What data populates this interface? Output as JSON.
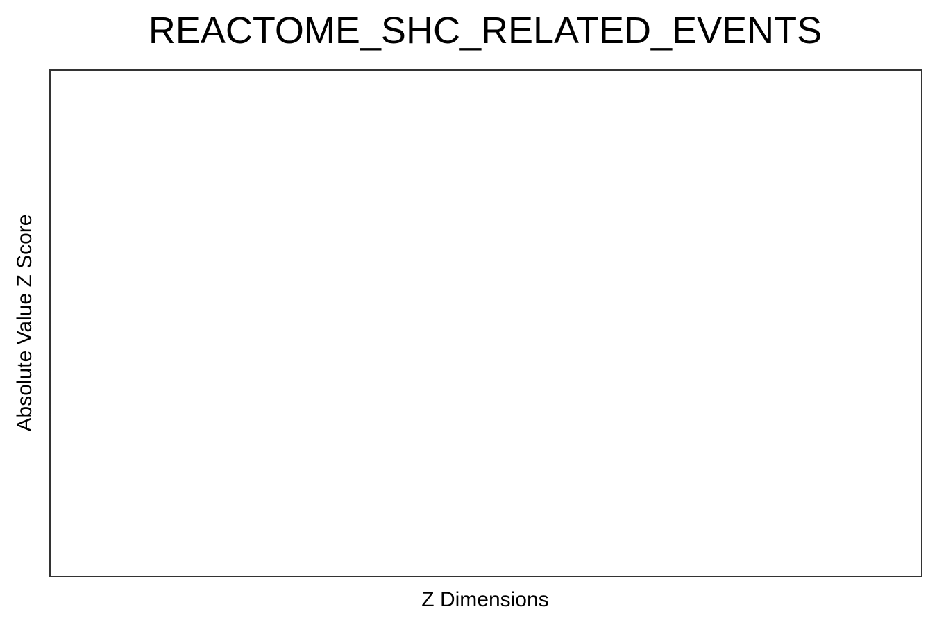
{
  "chart_data": {
    "type": "bar",
    "title": "REACTOME_SHC_RELATED_EVENTS",
    "xlabel": "Z Dimensions",
    "ylabel": "Absolute Value Z Score",
    "categories": [],
    "values": [],
    "grid": false,
    "legend": "none"
  }
}
